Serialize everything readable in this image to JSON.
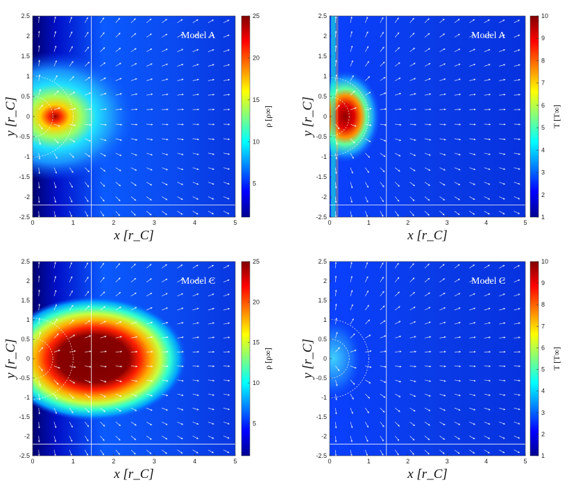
{
  "chart_data": [
    {
      "type": "heatmap",
      "field": "density",
      "annotation": "Model A",
      "xlabel": "x [r_C]",
      "ylabel": "y [r_C]",
      "xlim": [
        0,
        5
      ],
      "ylim": [
        -2.5,
        2.5
      ],
      "xticks": [
        "0",
        "1",
        "2",
        "3",
        "4",
        "5"
      ],
      "yticks": [
        "2.5",
        "2",
        "1.5",
        "1",
        "0.5",
        "0",
        "-0.5",
        "-1",
        "-1.5",
        "-2",
        "-2.5"
      ],
      "colorbar": {
        "label": "ρ [ρ∞]",
        "range": [
          1,
          25
        ],
        "ticks": [
          "25",
          "20",
          "15",
          "10",
          "5"
        ]
      },
      "hotspot": {
        "x": 0.25,
        "y": 0.0,
        "peak": 25
      },
      "outflow_extent_x": 2.8
    },
    {
      "type": "heatmap",
      "field": "temperature",
      "annotation": "Model A",
      "xlabel": "x [r_C]",
      "ylabel": "y [r_C]",
      "xlim": [
        0,
        5
      ],
      "ylim": [
        -2.5,
        2.5
      ],
      "xticks": [
        "0",
        "1",
        "2",
        "3",
        "4",
        "5"
      ],
      "yticks": [
        "2.5",
        "2",
        "1.5",
        "1",
        "0.5",
        "0",
        "-0.5",
        "-1",
        "-1.5",
        "-2",
        "-2.5"
      ],
      "colorbar": {
        "label": "T [T∞]",
        "range": [
          1,
          10
        ],
        "ticks": [
          "10",
          "9",
          "8",
          "7",
          "6",
          "5",
          "4",
          "3",
          "2",
          "1"
        ]
      },
      "hotspot": {
        "x": 0.4,
        "y": 0.0,
        "peak": 10
      }
    },
    {
      "type": "heatmap",
      "field": "density",
      "annotation": "Model C",
      "xlabel": "x [r_C]",
      "ylabel": "y [r_C]",
      "xlim": [
        0,
        5
      ],
      "ylim": [
        -2.5,
        2.5
      ],
      "xticks": [
        "0",
        "1",
        "2",
        "3",
        "4",
        "5"
      ],
      "yticks": [
        "2.5",
        "2",
        "1.5",
        "1",
        "0.5",
        "0",
        "-0.5",
        "-1",
        "-1.5",
        "-2",
        "-2.5"
      ],
      "colorbar": {
        "label": "ρ [ρ∞]",
        "range": [
          1,
          25
        ],
        "ticks": [
          "25",
          "20",
          "15",
          "10",
          "5"
        ]
      },
      "hotspot": {
        "x": 1.2,
        "y": 0.0,
        "peak": 25
      },
      "outflow_extent_x": 3.2
    },
    {
      "type": "heatmap",
      "field": "temperature",
      "annotation": "Model C",
      "xlabel": "x [r_C]",
      "ylabel": "y [r_C]",
      "xlim": [
        0,
        5
      ],
      "ylim": [
        -2.5,
        2.5
      ],
      "xticks": [
        "0",
        "1",
        "2",
        "3",
        "4",
        "5"
      ],
      "yticks": [
        "2.5",
        "2",
        "1.5",
        "1",
        "0.5",
        "0",
        "-0.5",
        "-1",
        "-1.5",
        "-2",
        "-2.5"
      ],
      "colorbar": {
        "label": "T [T∞]",
        "range": [
          1,
          10
        ],
        "ticks": [
          "10",
          "9",
          "8",
          "7",
          "6",
          "5",
          "4",
          "3",
          "2",
          "1"
        ]
      },
      "hotspot": {
        "x": 0.1,
        "y": 0.0,
        "peak": 4.2
      }
    }
  ]
}
